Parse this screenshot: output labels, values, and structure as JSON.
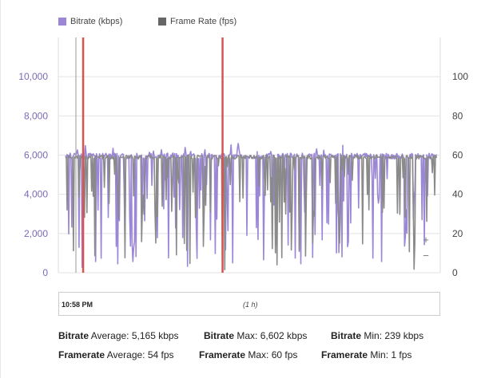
{
  "legend": [
    {
      "label": "Bitrate (kbps)",
      "color": "#9b87d6"
    },
    {
      "label": "Frame Rate (fps)",
      "color": "#707070"
    }
  ],
  "chart_data": {
    "type": "line",
    "title": "",
    "xlabel": "",
    "ylabel": "",
    "y_left": {
      "ticks": [
        "0",
        "2,000",
        "4,000",
        "6,000",
        "8,000",
        "10,000"
      ],
      "min": 0,
      "max": 12000
    },
    "y_right": {
      "ticks": [
        "0",
        "20",
        "40",
        "60",
        "80",
        "100"
      ],
      "min": 0,
      "max": 120
    },
    "grid": true,
    "legend_position": "top-left",
    "x_start_label": "10:58 PM",
    "x_duration_label": "(1 h)",
    "series": [
      {
        "name": "Bitrate (kbps)",
        "axis": "left",
        "color": "#9b87d6",
        "typical": 6000,
        "min": 239,
        "max": 6602,
        "average": 5165
      },
      {
        "name": "Frame Rate (fps)",
        "axis": "right",
        "color": "#8a8a8a",
        "typical": 60,
        "min": 1,
        "max": 60,
        "average": 54
      }
    ],
    "markers": [
      {
        "color": "#d9534f",
        "position_fraction": 0.065
      },
      {
        "color": "#d9534f",
        "position_fraction": 0.43
      }
    ]
  },
  "zoom": {
    "in_label": "+",
    "out_label": "−"
  },
  "stats": {
    "bitrate": {
      "label": "Bitrate",
      "average": "Average: 5,165 kbps",
      "max": "Max: 6,602 kbps",
      "min": "Min: 239 kbps"
    },
    "framerate": {
      "label": "Framerate",
      "average": "Average: 54 fps",
      "max": "Max: 60 fps",
      "min": "Min: 1 fps"
    }
  }
}
